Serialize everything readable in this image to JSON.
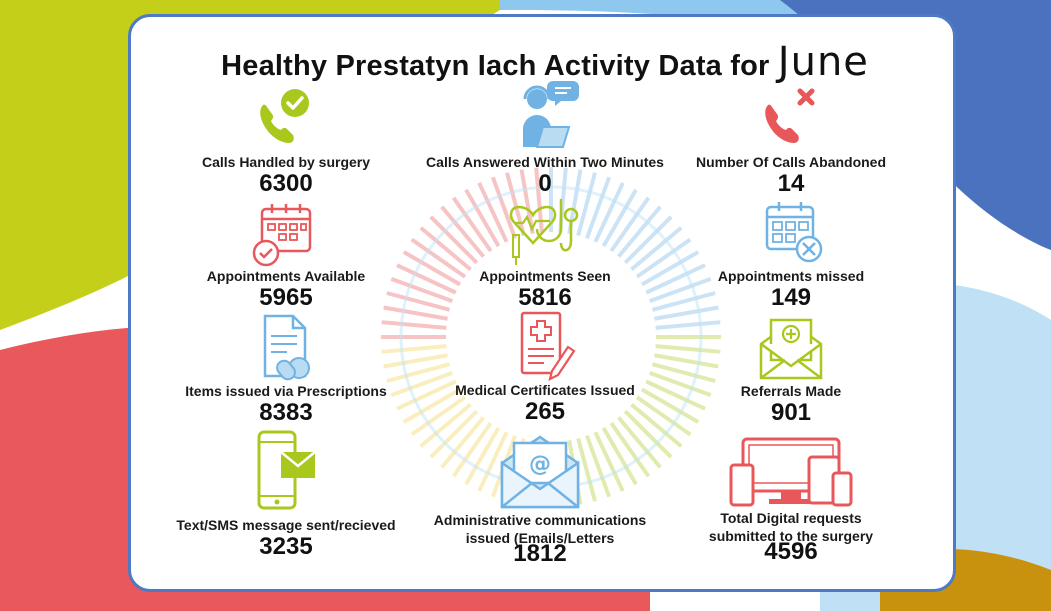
{
  "title": "Healthy Prestatyn Iach Activity Data for",
  "month": "June",
  "stats": [
    {
      "label": "Calls Handled by surgery",
      "value": "6300",
      "icon": "phone-check-icon"
    },
    {
      "label": "Calls Answered Within Two Minutes",
      "value": "0",
      "icon": "call-agent-icon"
    },
    {
      "label": "Number Of Calls Abandoned",
      "value": "14",
      "icon": "phone-cross-icon"
    },
    {
      "label": "Appointments Available",
      "value": "5965",
      "icon": "calendar-check-icon"
    },
    {
      "label": "Appointments Seen",
      "value": "5816",
      "icon": "stethoscope-icon"
    },
    {
      "label": "Appointments missed",
      "value": "149",
      "icon": "calendar-cross-icon"
    },
    {
      "label": "Items issued via Prescriptions",
      "value": "8383",
      "icon": "prescription-icon"
    },
    {
      "label": "Medical Certificates Issued",
      "value": "265",
      "icon": "medical-certificate-icon"
    },
    {
      "label": "Referrals Made",
      "value": "901",
      "icon": "referral-envelope-icon"
    },
    {
      "label": "Text/SMS message sent/recieved",
      "value": "3235",
      "icon": "sms-phone-icon"
    },
    {
      "label": "Administrative communications issued (Emails/Letters",
      "line1": "Administrative communications",
      "line2": "issued (Emails/Letters",
      "value": "1812",
      "icon": "email-envelope-icon"
    },
    {
      "label": "Total Digital requests submitted to the surgery",
      "line1": "Total Digital requests",
      "line2": "submitted to the surgery",
      "value": "4596",
      "icon": "devices-icon"
    }
  ],
  "colors": {
    "lime": "#a8c81e",
    "blue": "#6fb2e3",
    "red": "#e8585a",
    "border": "#4e79c4"
  }
}
